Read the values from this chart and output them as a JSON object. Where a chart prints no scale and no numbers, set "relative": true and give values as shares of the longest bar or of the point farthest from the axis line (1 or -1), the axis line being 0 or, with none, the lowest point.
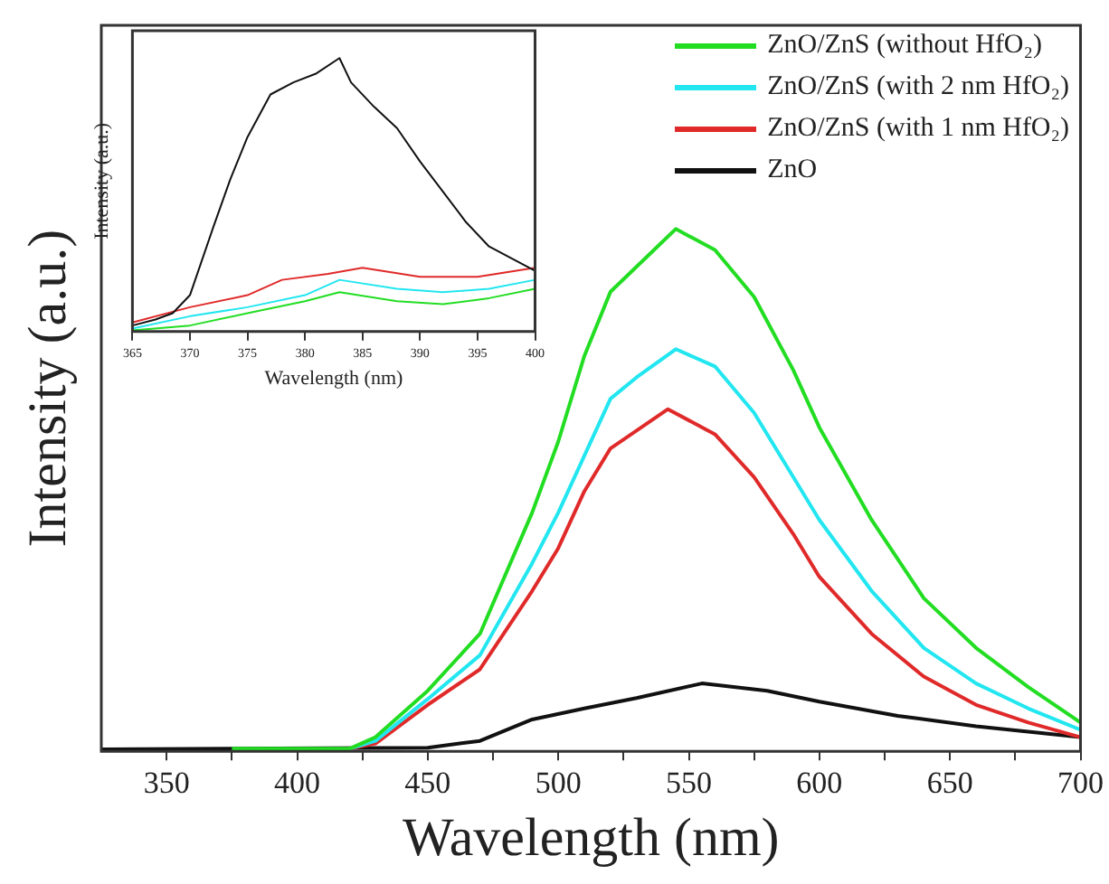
{
  "chart_data": [
    {
      "type": "line",
      "xlabel": "Wavelength (nm)",
      "ylabel": "Intensity (a.u.)",
      "relative": true,
      "legend": "top right",
      "xlim": [
        325,
        700
      ],
      "xticks": [
        350,
        {
          "value": 375,
          "label": null
        },
        400,
        {
          "value": 425,
          "label": null
        },
        450,
        {
          "value": 475,
          "label": null
        },
        500,
        {
          "value": 525,
          "label": null
        },
        550,
        {
          "value": 575,
          "label": null
        },
        600,
        {
          "value": 625,
          "label": null
        },
        650,
        {
          "value": 675,
          "label": null
        },
        700
      ],
      "series": [
        {
          "name": "ZnO/ZnS (without HfO₂)",
          "color": "#22dd22",
          "x": [
            375,
            420,
            430,
            450,
            470,
            490,
            500,
            510,
            520,
            530,
            545,
            560,
            575,
            590,
            600,
            620,
            640,
            660,
            680,
            700
          ],
          "values": [
            0.005,
            0.005,
            0.027,
            0.116,
            0.225,
            0.457,
            0.593,
            0.757,
            0.88,
            0.928,
            1,
            0.96,
            0.87,
            0.73,
            0.62,
            0.443,
            0.293,
            0.198,
            0.123,
            0.055
          ]
        },
        {
          "name": "ZnO/ZnS (with 2 nm HfO₂)",
          "color": "#22e6f0",
          "x": [
            420,
            430,
            450,
            470,
            490,
            500,
            510,
            520,
            530,
            545,
            560,
            575,
            590,
            600,
            620,
            640,
            660,
            680,
            700
          ],
          "values": [
            0.005,
            0.02,
            0.1,
            0.184,
            0.36,
            0.457,
            0.566,
            0.675,
            0.716,
            0.77,
            0.737,
            0.648,
            0.525,
            0.443,
            0.307,
            0.198,
            0.13,
            0.082,
            0.041
          ]
        },
        {
          "name": "ZnO/ZnS (with 1 nm HfO₂)",
          "color": "#e02a2a",
          "x": [
            420,
            430,
            450,
            470,
            490,
            500,
            510,
            520,
            530,
            542,
            560,
            575,
            590,
            600,
            620,
            640,
            660,
            680,
            700
          ],
          "values": [
            0.005,
            0.015,
            0.089,
            0.157,
            0.307,
            0.389,
            0.498,
            0.58,
            0.614,
            0.655,
            0.607,
            0.525,
            0.416,
            0.334,
            0.225,
            0.143,
            0.089,
            0.055,
            0.027
          ]
        },
        {
          "name": "ZnO",
          "color": "#111111",
          "x": [
            325,
            450,
            470,
            490,
            510,
            530,
            555,
            580,
            600,
            630,
            660,
            700
          ],
          "values": [
            0.004,
            0.007,
            0.02,
            0.061,
            0.082,
            0.102,
            0.13,
            0.116,
            0.095,
            0.068,
            0.048,
            0.027
          ]
        }
      ]
    },
    {
      "type": "line",
      "xlabel": "Wavelength (nm)",
      "ylabel": "Intensity (a.u.)",
      "relative": true,
      "xlim": [
        365,
        400
      ],
      "xticks": [
        365,
        370,
        375,
        380,
        385,
        390,
        395,
        400
      ],
      "series": [
        {
          "color": "#111111",
          "x": [
            365,
            367,
            368.5,
            370,
            372,
            373.5,
            375,
            377,
            379,
            381,
            383,
            384,
            386,
            388,
            390,
            392,
            394,
            396,
            398,
            400
          ],
          "values": [
            0.022,
            0.044,
            0.067,
            0.133,
            0.378,
            0.556,
            0.711,
            0.867,
            0.911,
            0.944,
            1,
            0.911,
            0.822,
            0.744,
            0.622,
            0.511,
            0.4,
            0.311,
            0.267,
            0.222
          ]
        },
        {
          "color": "#e02a2a",
          "x": [
            365,
            370,
            375,
            378,
            382,
            385,
            390,
            395,
            400
          ],
          "values": [
            0.033,
            0.089,
            0.133,
            0.189,
            0.211,
            0.233,
            0.2,
            0.2,
            0.233
          ]
        },
        {
          "color": "#22e6f0",
          "x": [
            365,
            370,
            375,
            380,
            383,
            388,
            392,
            396,
            400
          ],
          "values": [
            0.011,
            0.056,
            0.089,
            0.133,
            0.189,
            0.156,
            0.144,
            0.156,
            0.189
          ]
        },
        {
          "color": "#22dd22",
          "x": [
            365,
            370,
            375,
            380,
            383,
            388,
            392,
            396,
            400
          ],
          "values": [
            0.004,
            0.022,
            0.067,
            0.111,
            0.144,
            0.111,
            0.1,
            0.122,
            0.156
          ]
        }
      ]
    }
  ]
}
